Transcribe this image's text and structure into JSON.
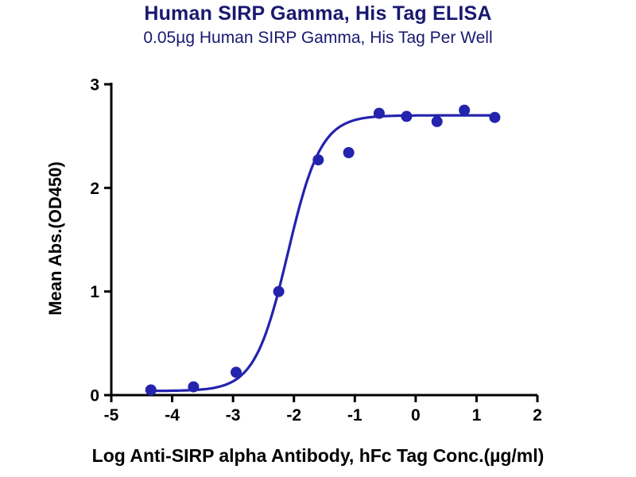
{
  "chart_data": {
    "type": "scatter",
    "title": "Human SIRP Gamma, His Tag ELISA",
    "subtitle": "0.05µg Human SIRP Gamma, His Tag Per Well",
    "xlabel": "Log Anti-SIRP alpha Antibody, hFc Tag Conc.(µg/ml)",
    "ylabel": "Mean Abs.(OD450)",
    "xlim": [
      -5,
      2
    ],
    "ylim": [
      0,
      3
    ],
    "x_ticks": [
      -5,
      -4,
      -3,
      -2,
      -1,
      0,
      1,
      2
    ],
    "y_ticks": [
      0,
      1,
      2,
      3
    ],
    "grid": false,
    "legend": "none",
    "title_color": "#191970",
    "axis_text_color": "#000000",
    "point_color": "#2323ae",
    "curve_color": "#2323ae",
    "points": [
      {
        "x": -4.35,
        "y": 0.05
      },
      {
        "x": -3.65,
        "y": 0.08
      },
      {
        "x": -2.95,
        "y": 0.22
      },
      {
        "x": -2.25,
        "y": 1.0
      },
      {
        "x": -1.6,
        "y": 2.27
      },
      {
        "x": -1.1,
        "y": 2.34
      },
      {
        "x": -0.6,
        "y": 2.72
      },
      {
        "x": -0.15,
        "y": 2.69
      },
      {
        "x": 0.35,
        "y": 2.64
      },
      {
        "x": 0.8,
        "y": 2.75
      },
      {
        "x": 1.3,
        "y": 2.68
      }
    ],
    "fit_curve": {
      "model": "4PL",
      "bottom": 0.04,
      "top": 2.7,
      "log_ec50": -2.1,
      "hill_slope": 1.6,
      "x_start": -4.42,
      "x_end": 1.32
    }
  }
}
